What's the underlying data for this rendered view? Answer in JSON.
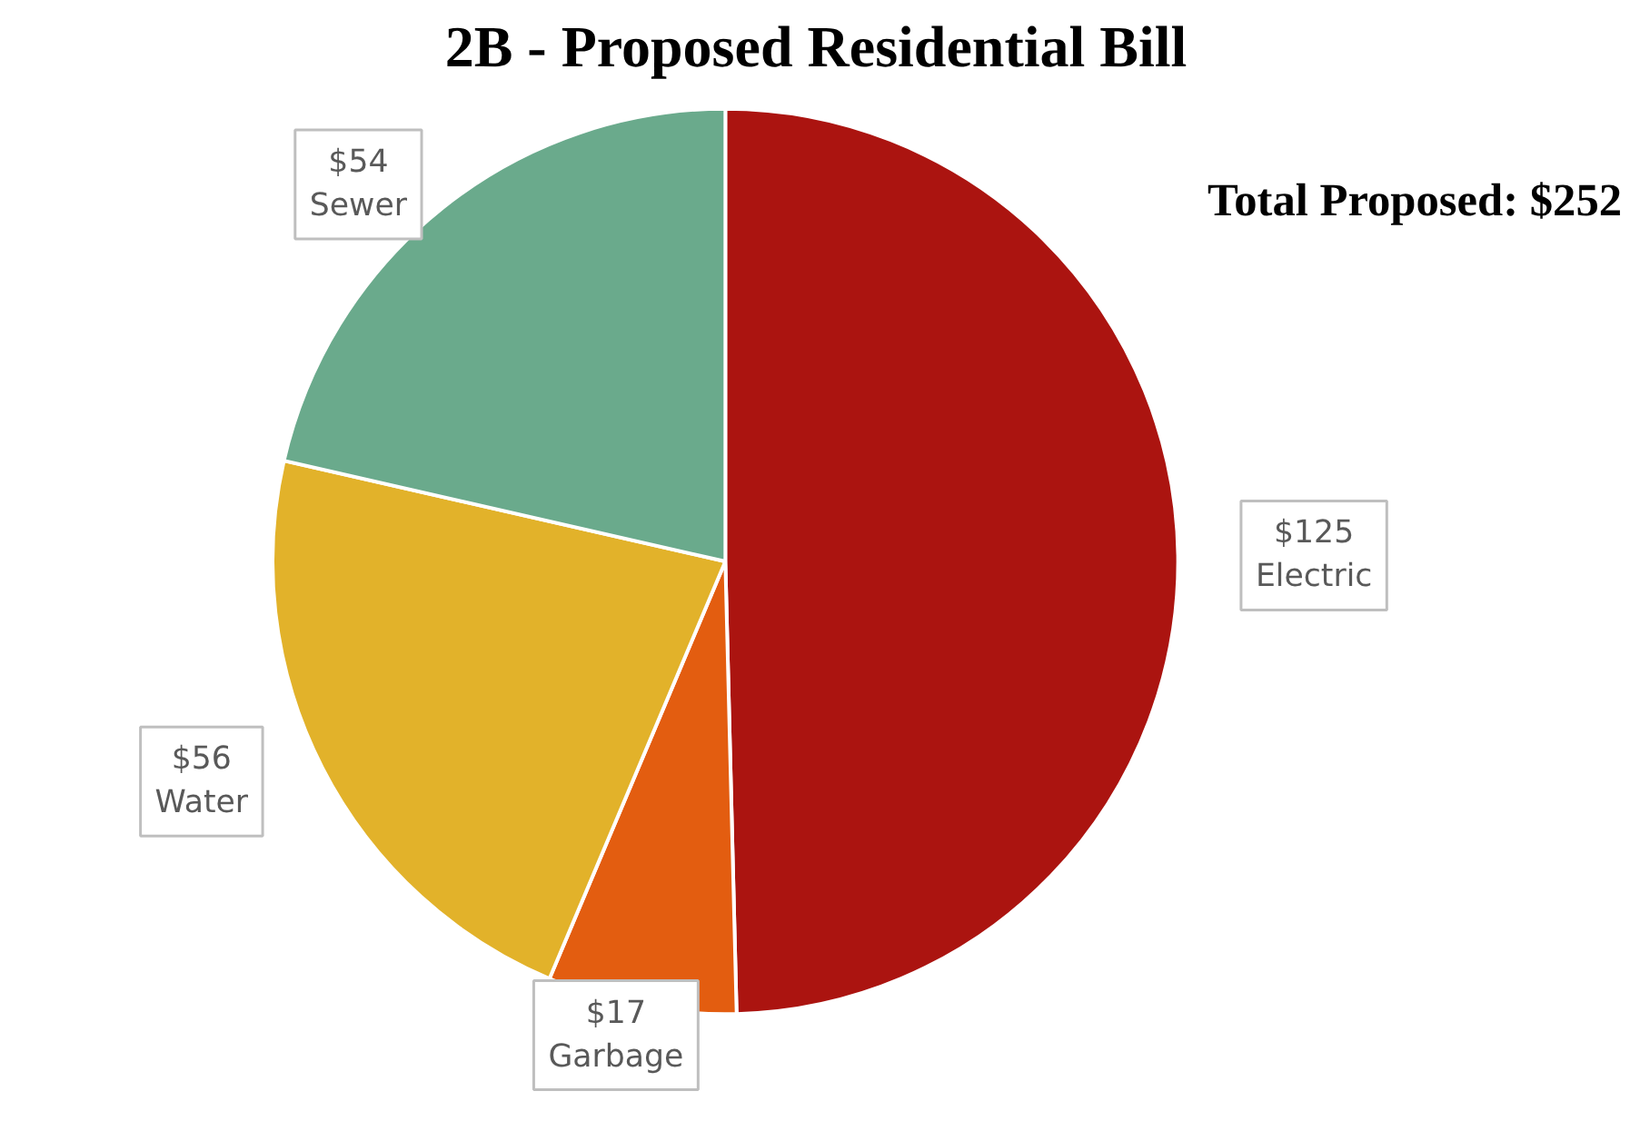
{
  "chart_data": {
    "type": "pie",
    "title": "2B - Proposed Residential Bill",
    "categories": [
      "Electric",
      "Garbage",
      "Water",
      "Sewer"
    ],
    "values": [
      125,
      17,
      56,
      54
    ],
    "colors": [
      "#ab1410",
      "#e35d10",
      "#e2b22a",
      "#6aaa8c"
    ],
    "value_labels": [
      "$125",
      "$17",
      "$56",
      "$54"
    ],
    "annotations": [
      "Total Proposed: $252"
    ],
    "legend": false
  }
}
